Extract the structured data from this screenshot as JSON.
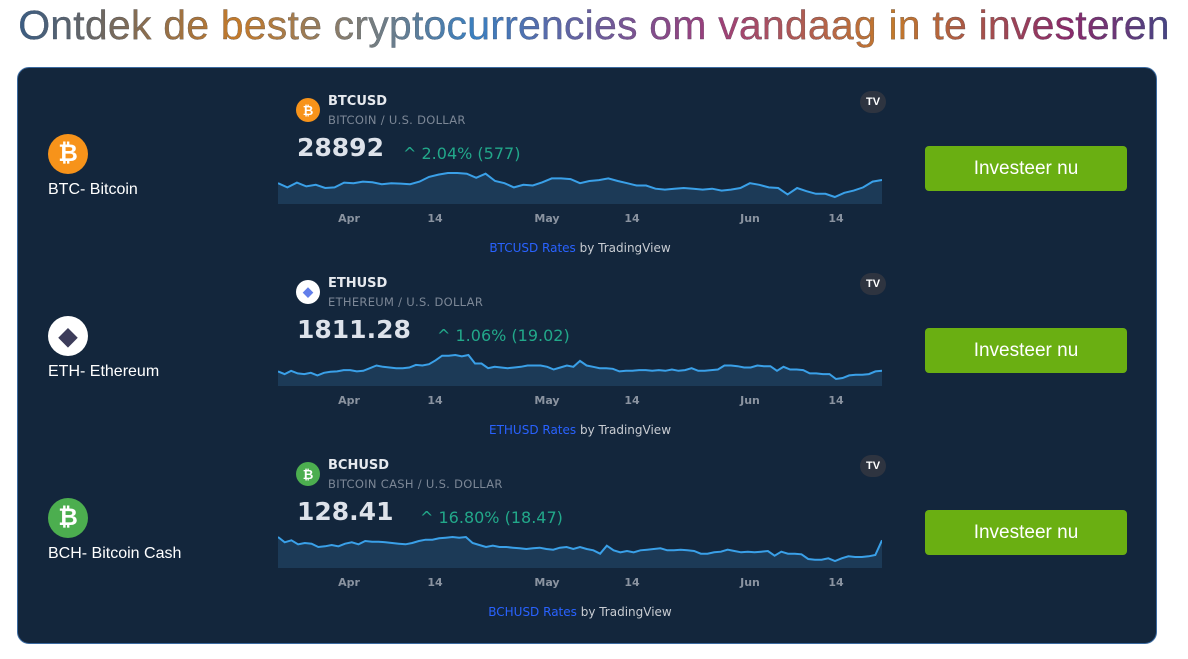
{
  "title": "Ontdek de beste cryptocurrencies om vandaag in te investeren",
  "colors": {
    "card_bg": "#13263c",
    "button": "#6aaf12",
    "line": "#3aa0e8",
    "fill": "#1c3a57",
    "change_up": "#22a88a",
    "link": "#2962ff"
  },
  "x_ticks": [
    "Apr",
    "14",
    "May",
    "14",
    "Jun",
    "14"
  ],
  "rows": [
    {
      "coin_icon": "bitcoin-icon",
      "coin_color": "#f7931a",
      "coin_glyph": "₿",
      "label": "BTC- Bitcoin",
      "symbol": "BTCUSD",
      "description": "BITCOIN / U.S. DOLLAR",
      "price": "28892",
      "change": "2.04% (577)",
      "attr_link": "BTCUSD Rates",
      "attr_by": " by TradingView",
      "button": "Investeer nu"
    },
    {
      "coin_icon": "ethereum-icon",
      "coin_color": "#ffffff",
      "coin_glyph": "◆",
      "label": "ETH- Ethereum",
      "symbol": "ETHUSD",
      "description": "ETHEREUM / U.S. DOLLAR",
      "price": "1811.28",
      "change": "1.06% (19.02)",
      "attr_link": "ETHUSD Rates",
      "attr_by": " by TradingView",
      "button": "Investeer nu"
    },
    {
      "coin_icon": "bitcoin-cash-icon",
      "coin_color": "#4cae4f",
      "coin_glyph": "₿",
      "label": "BCH- Bitcoin Cash",
      "symbol": "BCHUSD",
      "description": "BITCOIN CASH / U.S. DOLLAR",
      "price": "128.41",
      "change": "16.80% (18.47)",
      "attr_link": "BCHUSD Rates",
      "attr_by": " by TradingView",
      "button": "Investeer nu"
    }
  ],
  "chart_data": [
    {
      "type": "area",
      "series": [
        {
          "values": [
            28160,
            27210,
            28310,
            27430,
            27800,
            27070,
            27210,
            28310,
            28160,
            28530,
            28380,
            27940,
            28160,
            28090,
            27940,
            28530,
            29620,
            30130,
            30500,
            30500,
            30350,
            29400,
            30350,
            28670,
            28160,
            27210,
            27800,
            27650,
            28380,
            29260,
            29260,
            29110,
            28160,
            28670,
            28890,
            29260,
            28670,
            28160,
            27650,
            27650,
            26920,
            26700,
            26920,
            27070,
            26920,
            26700,
            26920,
            26480,
            26700,
            27070,
            28160,
            27800,
            27210,
            27070,
            25610,
            27070,
            26340,
            25750,
            25750,
            25020,
            25970,
            26480,
            27210,
            28530,
            28892
          ]
        }
      ]
    },
    {
      "type": "area",
      "series": [
        {
          "values": [
            1805,
            1781,
            1811,
            1787,
            1781,
            1793,
            1769,
            1793,
            1802,
            1805,
            1817,
            1817,
            1805,
            1811,
            1835,
            1859,
            1847,
            1841,
            1835,
            1835,
            1841,
            1865,
            1859,
            1871,
            1907,
            1949,
            1949,
            1955,
            1943,
            1955,
            1877,
            1877,
            1835,
            1847,
            1841,
            1835,
            1841,
            1847,
            1859,
            1859,
            1859,
            1847,
            1823,
            1841,
            1859,
            1847,
            1901,
            1859,
            1847,
            1835,
            1835,
            1829,
            1805,
            1811,
            1811,
            1817,
            1817,
            1811,
            1817,
            1811,
            1823,
            1811,
            1817,
            1835,
            1811,
            1811,
            1817,
            1823,
            1859,
            1859,
            1853,
            1841,
            1841,
            1859,
            1853,
            1853,
            1811,
            1847,
            1823,
            1823,
            1817,
            1787,
            1787,
            1781,
            1781,
            1736,
            1745,
            1769,
            1775,
            1775,
            1781,
            1805,
            1811.28
          ]
        }
      ]
    },
    {
      "type": "area",
      "series": [
        {
          "values": [
            130.9,
            126.9,
            128.4,
            125.4,
            126.4,
            125.9,
            123.4,
            123.9,
            124.9,
            123.9,
            125.9,
            126.9,
            125.4,
            127.9,
            127.4,
            127.4,
            126.9,
            126.4,
            125.9,
            125.4,
            126.4,
            127.9,
            128.9,
            128.9,
            129.9,
            130.4,
            130.9,
            130.4,
            130.9,
            126.4,
            124.9,
            123.4,
            124.4,
            123.4,
            123.4,
            122.9,
            122.4,
            121.9,
            122.4,
            122.9,
            121.9,
            121.4,
            122.9,
            123.4,
            121.9,
            123.4,
            121.9,
            120.9,
            118.4,
            124.4,
            120.9,
            119.4,
            120.4,
            119.4,
            120.9,
            121.4,
            121.9,
            122.4,
            120.9,
            120.9,
            121.4,
            120.9,
            120.4,
            118.4,
            118.4,
            119.4,
            119.9,
            121.4,
            120.4,
            119.4,
            119.9,
            119.4,
            119.9,
            120.4,
            116.9,
            119.9,
            118.4,
            118.4,
            117.9,
            114.4,
            113.9,
            113.9,
            114.9,
            112.9,
            114.9,
            116.4,
            115.9,
            115.9,
            116.4,
            117.4,
            128.41
          ]
        }
      ]
    }
  ]
}
